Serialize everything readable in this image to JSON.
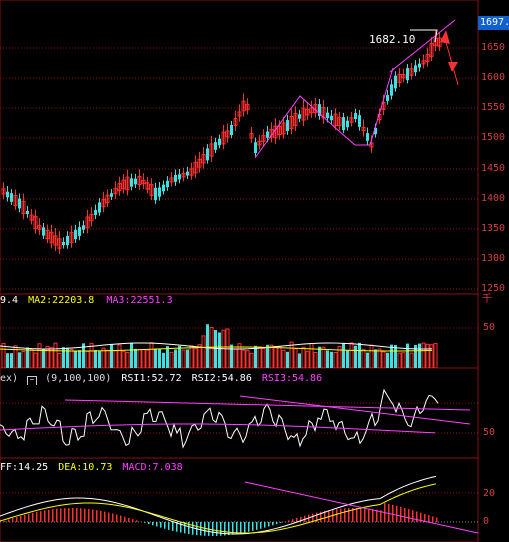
{
  "price_panel": {
    "current_price_badge": "1697.",
    "peak_annotation": "1682.10",
    "axis_ticks": [
      "1650",
      "1600",
      "1550",
      "1500",
      "1450",
      "1400",
      "1350",
      "1300",
      "1250"
    ]
  },
  "volume_panel": {
    "legend": {
      "ma1": "9.4",
      "ma2": "MA2:22203.8",
      "ma3": "MA3:22551.3"
    },
    "unit_label": "千",
    "axis_ticks": [
      "50"
    ]
  },
  "rsi_panel": {
    "legend": {
      "name": "ex)",
      "params": "(9,100,100)",
      "rsi1": "RSI1:52.72",
      "rsi2": "RSI2:54.86",
      "rsi3": "RSI3:54.86"
    },
    "axis_ticks": [
      "50"
    ]
  },
  "macd_panel": {
    "legend": {
      "diff": "FF:14.25",
      "dea": "DEA:10.73",
      "macd": "MACD:7.038"
    },
    "axis_ticks": [
      "20",
      "0"
    ]
  },
  "colors": {
    "up": "#ff3030",
    "down": "#40e0e0",
    "grid": "#8a1010",
    "ma1": "#ffffff",
    "ma2": "#ffff00",
    "ma3": "#ff40ff",
    "trend": "#ff40ff"
  }
}
